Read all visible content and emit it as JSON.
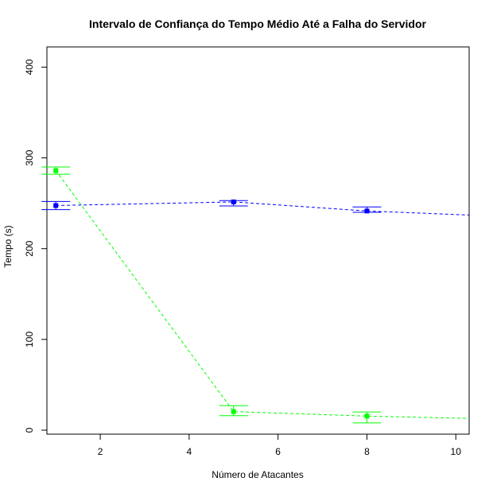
{
  "chart_data": {
    "type": "line",
    "title": "Intervalo de Confiança do Tempo Médio Até a Falha do Servidor",
    "xlabel": "Número de Atacantes",
    "ylabel": "Tempo (s)",
    "xlim": [
      0.8,
      10.3
    ],
    "ylim": [
      0,
      410
    ],
    "x_ticks": [
      2,
      4,
      6,
      8,
      10
    ],
    "y_ticks": [
      0,
      100,
      200,
      300,
      400
    ],
    "grid": false,
    "legend": "none",
    "series": [
      {
        "color": "#0000ff",
        "points": [
          {
            "x": 1,
            "y": 247.5,
            "lo": 243,
            "hi": 252
          },
          {
            "x": 5,
            "y": 251.5,
            "lo": 247,
            "hi": 253
          },
          {
            "x": 8,
            "y": 241.5,
            "lo": 240,
            "hi": 246
          },
          {
            "x": 10.3,
            "y": 237
          }
        ]
      },
      {
        "color": "#00ff00",
        "points": [
          {
            "x": 1,
            "y": 286,
            "lo": 282,
            "hi": 290
          },
          {
            "x": 5,
            "y": 20.5,
            "lo": 16,
            "hi": 27
          },
          {
            "x": 8,
            "y": 15.5,
            "lo": 8,
            "hi": 20
          },
          {
            "x": 10.3,
            "y": 13
          }
        ]
      }
    ]
  }
}
